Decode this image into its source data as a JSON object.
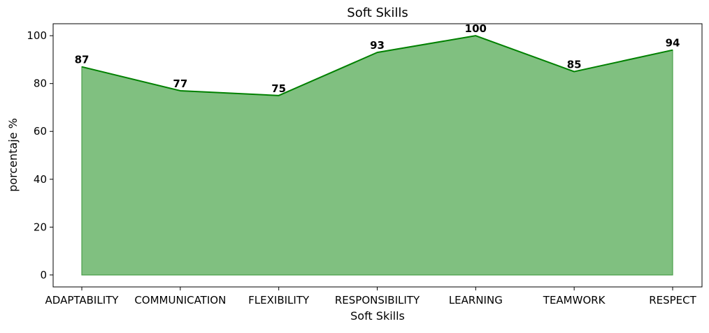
{
  "chart_data": {
    "type": "area",
    "title": "Soft Skills",
    "xlabel": "Soft Skills",
    "ylabel": "porcentaje %",
    "categories": [
      "ADAPTABILITY",
      "COMMUNICATION",
      "FLEXIBILITY",
      "RESPONSIBILITY",
      "LEARNING",
      "TEAMWORK",
      "RESPECT"
    ],
    "values": [
      87,
      77,
      75,
      93,
      100,
      85,
      94
    ],
    "data_labels": [
      "87",
      "77",
      "75",
      "93",
      "100",
      "85",
      "94"
    ],
    "yticks": [
      0,
      20,
      40,
      60,
      80,
      100
    ],
    "ytick_labels": [
      "0",
      "20",
      "40",
      "60",
      "80",
      "100"
    ],
    "ylim": [
      -5,
      105
    ],
    "grid": false,
    "colors": {
      "fill": "#80c080",
      "line": "#008000",
      "fill_edge": "#4a9f4a",
      "labels": "#000000"
    }
  }
}
